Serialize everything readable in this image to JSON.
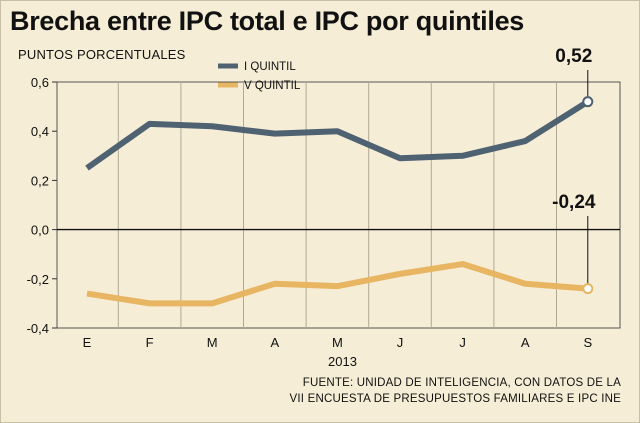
{
  "title": "Brecha entre IPC total e IPC por quintiles",
  "subtitle": "PUNTOS PORCENTUALES",
  "source_lines": [
    "FUENTE: UNIDAD DE INTELIGENCIA, CON DATOS DE LA",
    "VII ENCUESTA DE PRESUPUESTOS FAMILIARES E IPC INE"
  ],
  "chart_data": {
    "type": "line",
    "title": "Brecha entre IPC total e IPC por quintiles",
    "ylabel": "PUNTOS PORCENTUALES",
    "xlabel": "2013",
    "categories": [
      "E",
      "F",
      "M",
      "A",
      "M",
      "J",
      "J",
      "A",
      "S"
    ],
    "ylim": [
      -0.4,
      0.6
    ],
    "yticks": [
      0.6,
      0.4,
      0.2,
      0.0,
      -0.2,
      -0.4
    ],
    "ytick_labels": [
      "0,6",
      "0,4",
      "0,2",
      "0,0",
      "-0,2",
      "-0,4"
    ],
    "grid": "vertical",
    "legend_position": "top-center",
    "series": [
      {
        "name": "I QUINTIL",
        "color": "#4f6272",
        "values": [
          0.25,
          0.43,
          0.42,
          0.39,
          0.4,
          0.29,
          0.3,
          0.36,
          0.52
        ]
      },
      {
        "name": "V QUINTIL",
        "color": "#e8b562",
        "values": [
          -0.26,
          -0.3,
          -0.3,
          -0.22,
          -0.23,
          -0.18,
          -0.14,
          -0.22,
          -0.24
        ]
      }
    ],
    "annotations": [
      {
        "series": 0,
        "index": 8,
        "label": "0,52"
      },
      {
        "series": 1,
        "index": 8,
        "label": "-0,24"
      }
    ]
  }
}
